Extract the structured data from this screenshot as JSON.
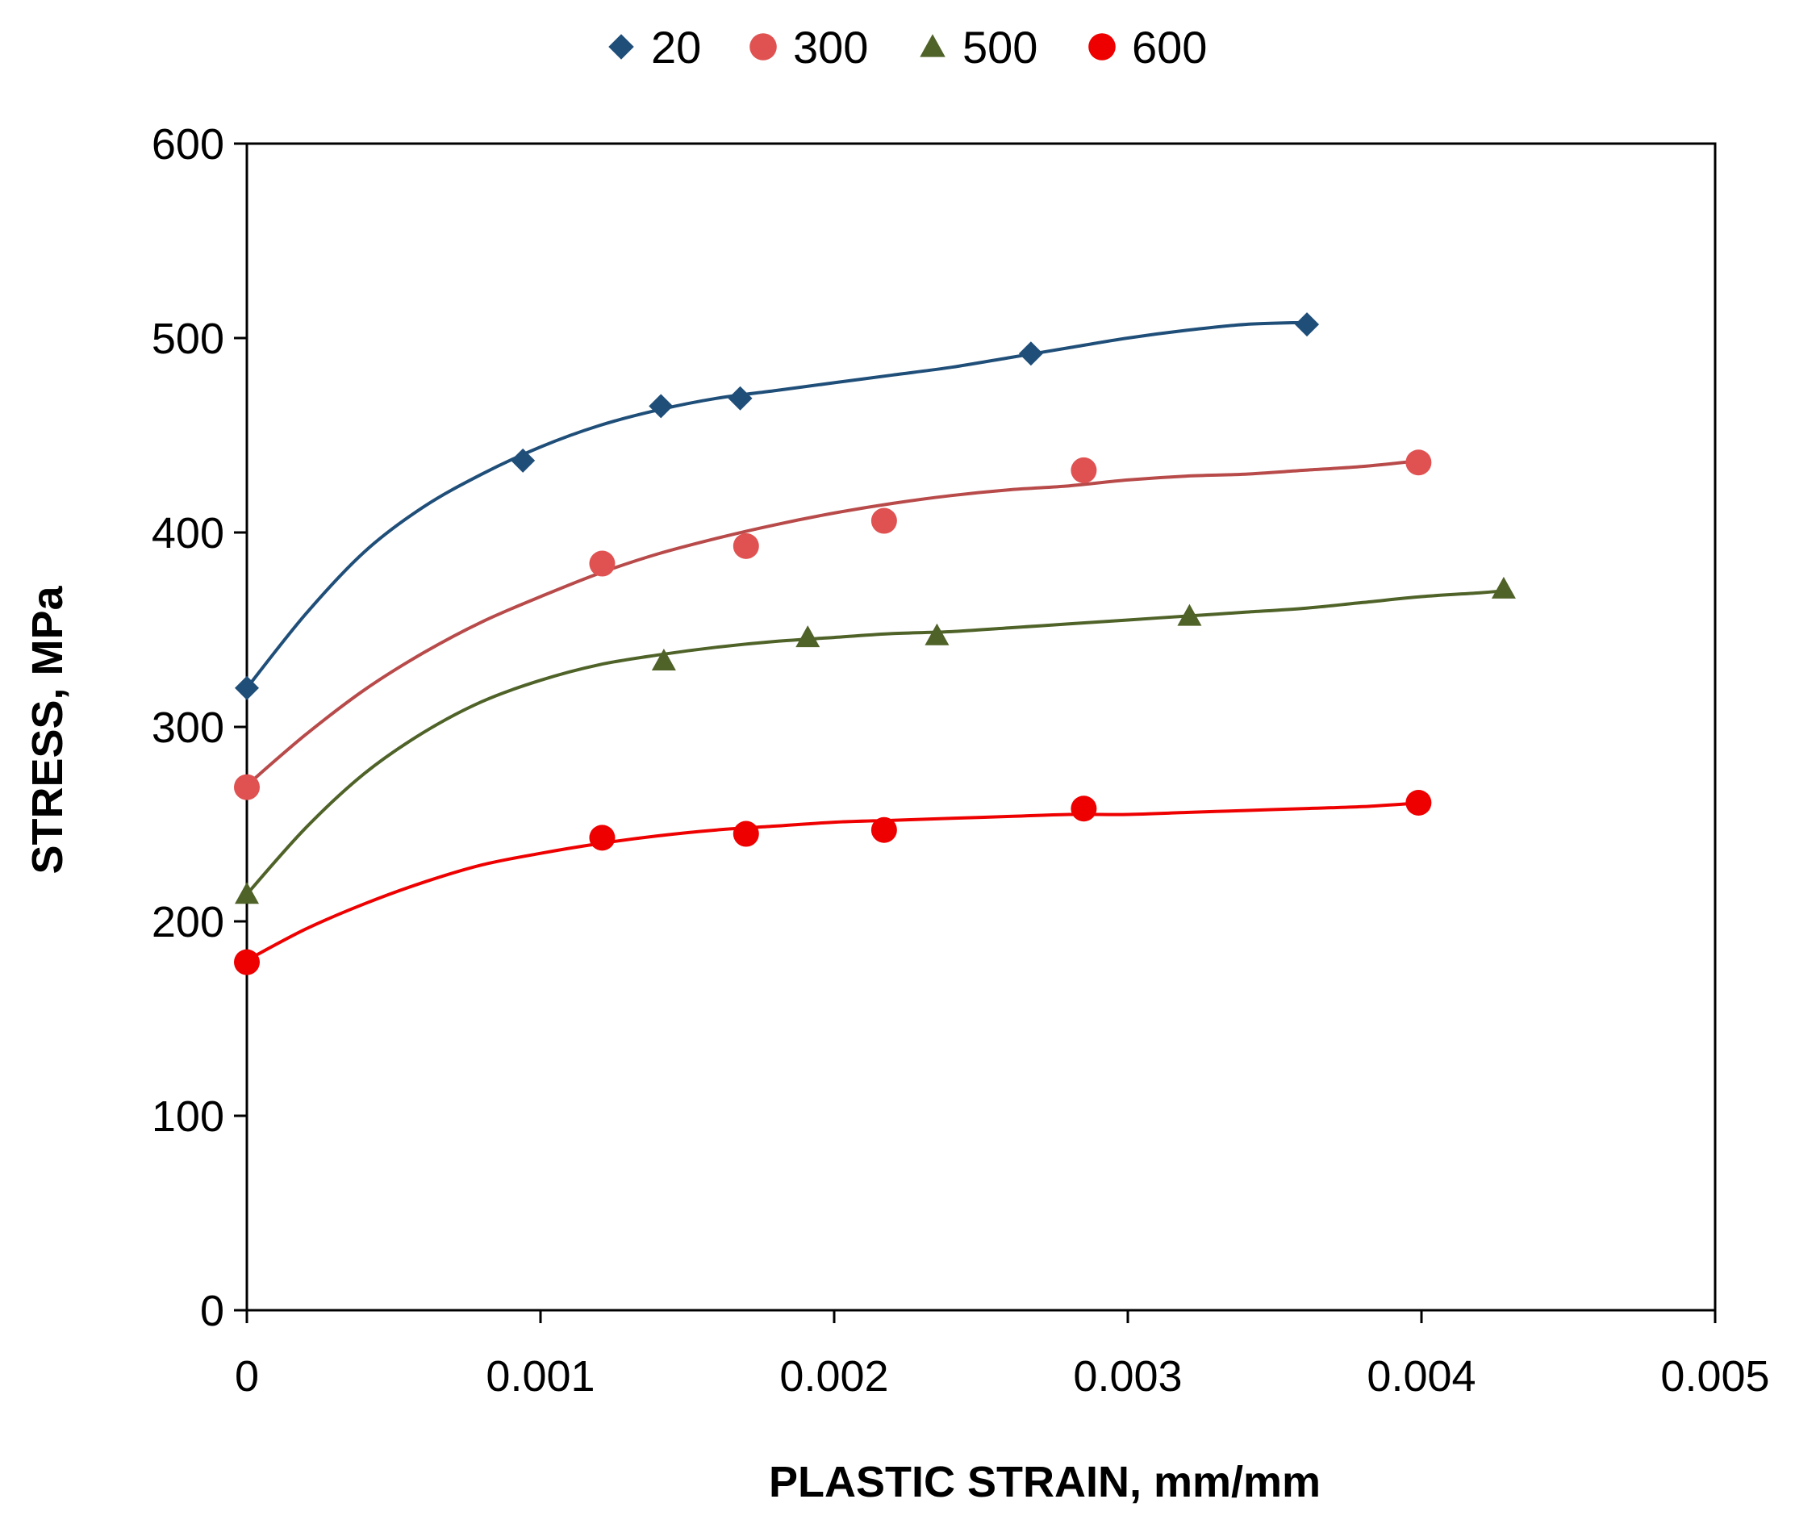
{
  "chart_data": {
    "type": "scatter",
    "title": "",
    "xlabel": "PLASTIC STRAIN, mm/mm",
    "ylabel": "STRESS, MPa",
    "xlim": [
      0,
      0.005
    ],
    "ylim": [
      0,
      600
    ],
    "x_ticks": [
      "0",
      "0.001",
      "0.002",
      "0.003",
      "0.004",
      "0.005"
    ],
    "y_ticks": [
      "0",
      "100",
      "200",
      "300",
      "400",
      "500",
      "600"
    ],
    "legend_position": "top-center",
    "grid": false,
    "series": [
      {
        "name": "20",
        "marker": "diamond",
        "color": "#1f4e79",
        "points": [
          [
            0,
            320
          ],
          [
            0.00094,
            437
          ],
          [
            0.00141,
            465
          ],
          [
            0.00168,
            469
          ],
          [
            0.00267,
            492
          ],
          [
            0.00361,
            507
          ]
        ],
        "trend": [
          [
            0,
            320
          ],
          [
            0.0002,
            358
          ],
          [
            0.0004,
            390
          ],
          [
            0.0006,
            413
          ],
          [
            0.0008,
            430
          ],
          [
            0.001,
            444
          ],
          [
            0.0012,
            455
          ],
          [
            0.0014,
            463
          ],
          [
            0.0016,
            469
          ],
          [
            0.0018,
            473
          ],
          [
            0.002,
            477
          ],
          [
            0.0022,
            481
          ],
          [
            0.0024,
            485
          ],
          [
            0.0026,
            490
          ],
          [
            0.0028,
            495
          ],
          [
            0.003,
            500
          ],
          [
            0.0032,
            504
          ],
          [
            0.0034,
            507
          ],
          [
            0.0036,
            508
          ]
        ]
      },
      {
        "name": "300",
        "marker": "circle",
        "color": "#e05252",
        "points": [
          [
            0,
            269
          ],
          [
            0.00121,
            384
          ],
          [
            0.0017,
            393
          ],
          [
            0.00217,
            406
          ],
          [
            0.00285,
            432
          ],
          [
            0.00399,
            436
          ]
        ],
        "trend": [
          [
            0,
            270
          ],
          [
            0.0002,
            296
          ],
          [
            0.0004,
            319
          ],
          [
            0.0006,
            338
          ],
          [
            0.0008,
            354
          ],
          [
            0.001,
            367
          ],
          [
            0.0012,
            379
          ],
          [
            0.0014,
            389
          ],
          [
            0.0016,
            397
          ],
          [
            0.0018,
            404
          ],
          [
            0.002,
            410
          ],
          [
            0.0022,
            415
          ],
          [
            0.0024,
            419
          ],
          [
            0.0026,
            422
          ],
          [
            0.0028,
            424
          ],
          [
            0.003,
            427
          ],
          [
            0.0032,
            429
          ],
          [
            0.0034,
            430
          ],
          [
            0.0036,
            432
          ],
          [
            0.0038,
            434
          ],
          [
            0.004,
            437
          ]
        ]
      },
      {
        "name": "500",
        "marker": "triangle",
        "color": "#4f6228",
        "points": [
          [
            0,
            214
          ],
          [
            0.00142,
            334
          ],
          [
            0.00191,
            346
          ],
          [
            0.00235,
            347
          ],
          [
            0.00321,
            357
          ],
          [
            0.00428,
            371
          ]
        ],
        "trend": [
          [
            0,
            214
          ],
          [
            0.0002,
            248
          ],
          [
            0.0004,
            276
          ],
          [
            0.0006,
            297
          ],
          [
            0.0008,
            313
          ],
          [
            0.001,
            324
          ],
          [
            0.0012,
            332
          ],
          [
            0.0014,
            337
          ],
          [
            0.0016,
            341
          ],
          [
            0.0018,
            344
          ],
          [
            0.002,
            346
          ],
          [
            0.0022,
            348
          ],
          [
            0.0024,
            349
          ],
          [
            0.0026,
            351
          ],
          [
            0.0028,
            353
          ],
          [
            0.003,
            355
          ],
          [
            0.0032,
            357
          ],
          [
            0.0034,
            359
          ],
          [
            0.0036,
            361
          ],
          [
            0.0038,
            364
          ],
          [
            0.004,
            367
          ],
          [
            0.0042,
            369
          ],
          [
            0.00428,
            370
          ]
        ]
      },
      {
        "name": "600",
        "marker": "circle",
        "color": "#ee0000",
        "points": [
          [
            0,
            179
          ],
          [
            0.00121,
            243
          ],
          [
            0.0017,
            245
          ],
          [
            0.00217,
            247
          ],
          [
            0.00285,
            258
          ],
          [
            0.00399,
            261
          ]
        ],
        "trend": [
          [
            0,
            180
          ],
          [
            0.0002,
            196
          ],
          [
            0.0004,
            209
          ],
          [
            0.0006,
            220
          ],
          [
            0.0008,
            229
          ],
          [
            0.001,
            235
          ],
          [
            0.0012,
            240
          ],
          [
            0.0014,
            244
          ],
          [
            0.0016,
            247
          ],
          [
            0.0018,
            249
          ],
          [
            0.002,
            251
          ],
          [
            0.0022,
            252
          ],
          [
            0.0024,
            253
          ],
          [
            0.0026,
            254
          ],
          [
            0.0028,
            255
          ],
          [
            0.003,
            255
          ],
          [
            0.0032,
            256
          ],
          [
            0.0034,
            257
          ],
          [
            0.0036,
            258
          ],
          [
            0.0038,
            259
          ],
          [
            0.004,
            261
          ]
        ]
      }
    ]
  }
}
